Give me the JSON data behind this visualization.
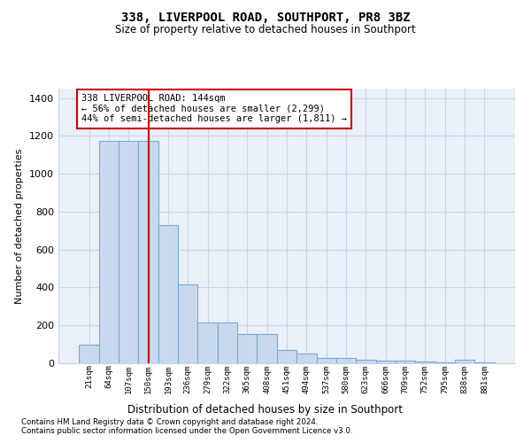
{
  "title": "338, LIVERPOOL ROAD, SOUTHPORT, PR8 3BZ",
  "subtitle": "Size of property relative to detached houses in Southport",
  "xlabel": "Distribution of detached houses by size in Southport",
  "ylabel": "Number of detached properties",
  "categories": [
    "21sqm",
    "64sqm",
    "107sqm",
    "150sqm",
    "193sqm",
    "236sqm",
    "279sqm",
    "322sqm",
    "365sqm",
    "408sqm",
    "451sqm",
    "494sqm",
    "537sqm",
    "580sqm",
    "623sqm",
    "666sqm",
    "709sqm",
    "752sqm",
    "795sqm",
    "838sqm",
    "881sqm"
  ],
  "values": [
    100,
    1175,
    1175,
    1175,
    730,
    415,
    215,
    215,
    155,
    155,
    70,
    50,
    30,
    30,
    18,
    15,
    15,
    10,
    5,
    20,
    5
  ],
  "bar_color": "#c8d9ee",
  "bar_edge_color": "#7aaad0",
  "red_line_x": 3,
  "red_line_color": "#cc0000",
  "annotation_text": "338 LIVERPOOL ROAD: 144sqm\n← 56% of detached houses are smaller (2,299)\n44% of semi-detached houses are larger (1,811) →",
  "annotation_box_edge": "#cc0000",
  "ylim": [
    0,
    1450
  ],
  "yticks": [
    0,
    200,
    400,
    600,
    800,
    1000,
    1200,
    1400
  ],
  "grid_color": "#c8d4e8",
  "background_color": "#eaf0f8",
  "footer_line1": "Contains HM Land Registry data © Crown copyright and database right 2024.",
  "footer_line2": "Contains public sector information licensed under the Open Government Licence v3.0."
}
